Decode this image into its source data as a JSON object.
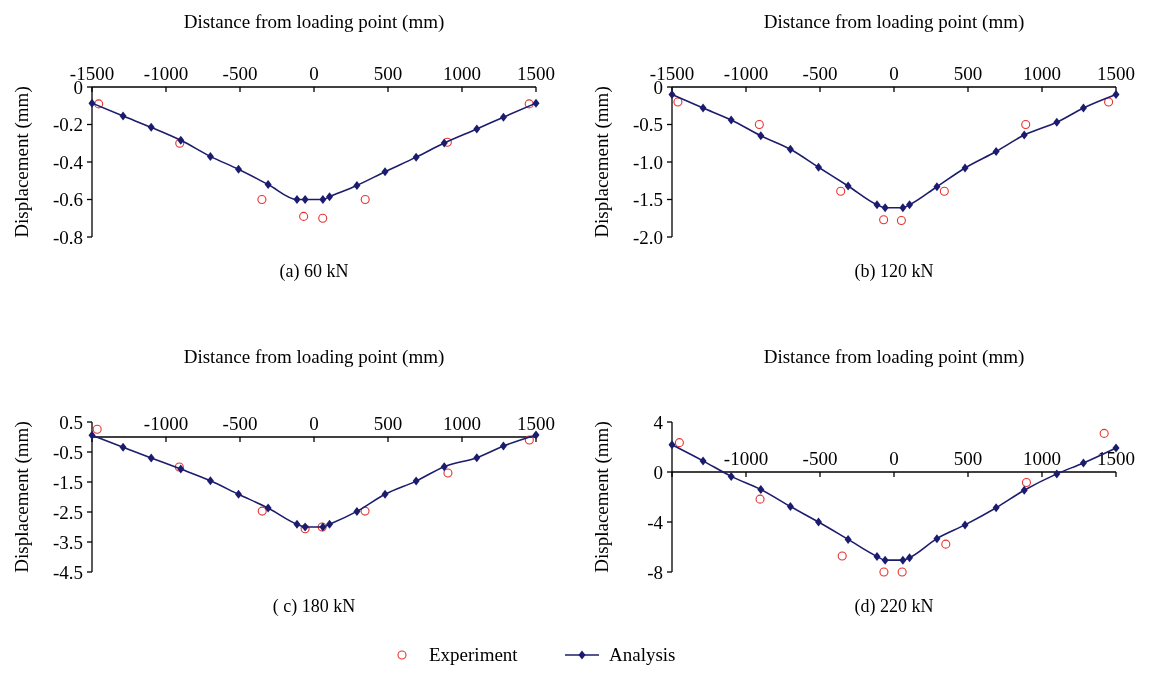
{
  "chart_data": [
    {
      "type": "line",
      "title": "(a) 60 kN",
      "xlabel": "Distance from loading point (mm)",
      "ylabel": "Displacement (mm)",
      "xlim": [
        -1500,
        1500
      ],
      "ylim": [
        -0.8,
        0
      ],
      "xticks": [
        -1500,
        -1000,
        -500,
        0,
        500,
        1000,
        1500
      ],
      "yticks": [
        0,
        -0.2,
        -0.4,
        -0.6,
        -0.8
      ],
      "grid": false,
      "legend": "bottom",
      "series": [
        {
          "name": "Experiment",
          "type": "scatter",
          "marker": "circle",
          "color": "#e8322e",
          "x": [
            -1455,
            -907,
            -352,
            -70,
            59,
            346,
            901,
            1454
          ],
          "values": [
            -0.09,
            -0.3,
            -0.6,
            -0.69,
            -0.7,
            -0.6,
            -0.295,
            -0.09
          ]
        },
        {
          "name": "Analysis",
          "type": "line",
          "marker": "diamond",
          "line_style": "solid",
          "color": "#1c1c6e",
          "x": [
            -1500,
            -1290,
            -1100,
            -900,
            -700,
            -510,
            -310,
            -115,
            -60,
            60,
            105,
            290,
            480,
            690,
            880,
            1100,
            1280,
            1500
          ],
          "values": [
            -0.086,
            -0.155,
            -0.215,
            -0.284,
            -0.37,
            -0.439,
            -0.52,
            -0.6,
            -0.6,
            -0.6,
            -0.585,
            -0.525,
            -0.452,
            -0.374,
            -0.299,
            -0.224,
            -0.161,
            -0.086
          ]
        }
      ]
    },
    {
      "type": "line",
      "title": "(b) 120 kN",
      "xlabel": "Distance from loading point (mm)",
      "ylabel": "Displacement (mm)",
      "xlim": [
        -1500,
        1500
      ],
      "ylim": [
        -2,
        0
      ],
      "xticks": [
        -1500,
        -1000,
        -500,
        0,
        500,
        1000,
        1500
      ],
      "yticks": [
        0,
        -0.5,
        {
          "value": -1,
          "label": "-1.0"
        },
        -1.5,
        {
          "value": -2,
          "label": "-2.0"
        }
      ],
      "grid": false,
      "series": [
        {
          "type": "scatter",
          "marker": "circle",
          "color": "#e8322e",
          "x": [
            -1460,
            -910,
            -360,
            -70,
            50,
            340,
            890,
            1450
          ],
          "values": [
            -0.2,
            -0.5,
            -1.39,
            -1.77,
            -1.78,
            -1.39,
            -0.5,
            -0.2
          ]
        },
        {
          "type": "line",
          "marker": "diamond",
          "line_style": "solid",
          "color": "#1c1c6e",
          "x": [
            -1500,
            -1290,
            -1100,
            -900,
            -700,
            -510,
            -310,
            -115,
            -60,
            60,
            105,
            290,
            480,
            690,
            880,
            1100,
            1280,
            1500
          ],
          "values": [
            -0.1,
            -0.28,
            -0.44,
            -0.65,
            -0.83,
            -1.07,
            -1.32,
            -1.57,
            -1.61,
            -1.61,
            -1.57,
            -1.33,
            -1.08,
            -0.86,
            -0.64,
            -0.47,
            -0.28,
            -0.1
          ]
        }
      ]
    },
    {
      "type": "line",
      "title": "( c) 180 kN",
      "xlabel": "Distance from loading point (mm)",
      "ylabel": "Displacement (mm)",
      "xlim": [
        -1500,
        1500
      ],
      "ylim": [
        -4.5,
        0.5
      ],
      "xticks": [
        {
          "value": -1500,
          "label": null
        },
        -1000,
        -500,
        0,
        500,
        1000,
        1500
      ],
      "yticks": [
        0.5,
        -0.5,
        -1.5,
        -2.5,
        -3.5,
        -4.5
      ],
      "grid": false,
      "series": [
        {
          "type": "scatter",
          "marker": "circle",
          "color": "#e8322e",
          "x": [
            -1465,
            -910,
            -350,
            -60,
            55,
            345,
            905,
            1455
          ],
          "values": [
            0.26,
            -1.0,
            -2.47,
            -3.06,
            -3.0,
            -2.47,
            -1.2,
            -0.1
          ]
        },
        {
          "type": "line",
          "marker": "diamond",
          "line_style": "solid",
          "color": "#1c1c6e",
          "x": [
            -1500,
            -1290,
            -1100,
            -900,
            -700,
            -510,
            -310,
            -115,
            -60,
            60,
            105,
            290,
            480,
            690,
            880,
            1100,
            1280,
            1500
          ],
          "values": [
            0.06,
            -0.34,
            -0.7,
            -1.07,
            -1.46,
            -1.91,
            -2.37,
            -2.91,
            -3.0,
            -3.0,
            -2.91,
            -2.48,
            -1.91,
            -1.47,
            -0.99,
            -0.69,
            -0.3,
            0.07
          ]
        }
      ]
    },
    {
      "type": "line",
      "title": "(d) 220 kN",
      "xlabel": "Distance from loading point (mm)",
      "ylabel": "Displacement (mm)",
      "xlim": [
        -1500,
        1500
      ],
      "ylim": [
        -8,
        4
      ],
      "xticks": [
        {
          "value": -1500,
          "label": null
        },
        -1000,
        -500,
        0,
        500,
        1000,
        1500
      ],
      "yticks": [
        4,
        0,
        -4,
        -8
      ],
      "grid": false,
      "series": [
        {
          "type": "scatter",
          "marker": "circle",
          "color": "#e8322e",
          "x": [
            -1450,
            -905,
            -350,
            -68,
            55,
            350,
            895,
            1420
          ],
          "values": [
            2.35,
            -2.17,
            -6.72,
            -8,
            -8,
            -5.77,
            -0.84,
            3.09
          ]
        },
        {
          "type": "line",
          "marker": "diamond",
          "line_style": "solid",
          "color": "#1c1c6e",
          "x": [
            -1500,
            -1290,
            -1100,
            -900,
            -700,
            -510,
            -310,
            -115,
            -60,
            60,
            105,
            290,
            480,
            690,
            880,
            1100,
            1280,
            1500
          ],
          "values": [
            2.18,
            0.89,
            -0.35,
            -1.4,
            -2.76,
            -4.0,
            -5.39,
            -6.75,
            -7.05,
            -7.05,
            -6.85,
            -5.33,
            -4.23,
            -2.86,
            -1.46,
            -0.15,
            0.72,
            1.92
          ]
        }
      ]
    }
  ]
}
